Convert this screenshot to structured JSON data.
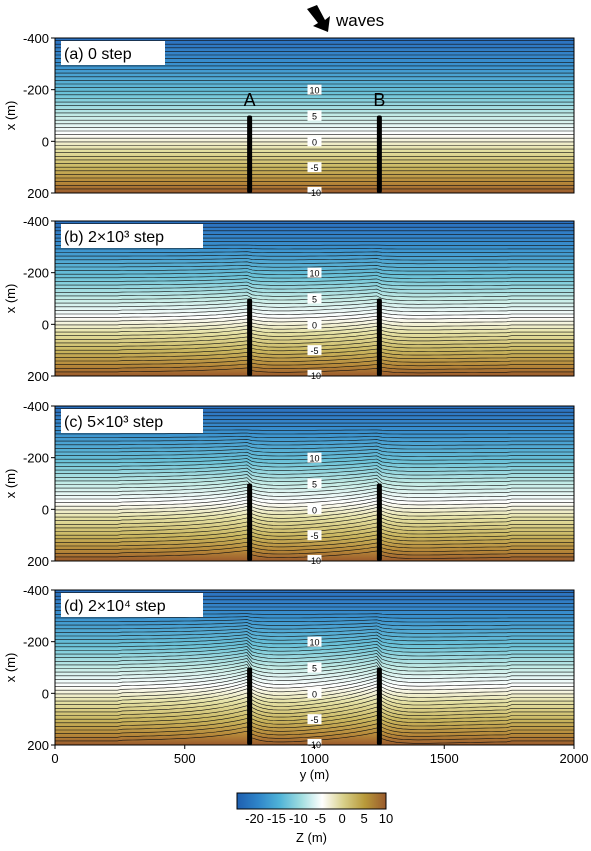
{
  "waves_label": "waves",
  "y_axis_label": "x (m)",
  "x_axis_label": "y (m)",
  "colorbar_label": "Z (m)",
  "groin_labels": [
    "A",
    "B"
  ],
  "panels": [
    {
      "label_text": "(a) 0 step",
      "stage": 0
    },
    {
      "label_text": "(b) 2×10³ step",
      "stage": 1
    },
    {
      "label_text": "(c) 5×10³ step",
      "stage": 2
    },
    {
      "label_text": "(d) 2×10⁴ step",
      "stage": 3
    }
  ],
  "contour_labels": [
    "-20",
    "-15",
    "-10",
    "-5",
    "0",
    "5",
    "10"
  ],
  "contour_label_values": [
    -20,
    -15,
    -10,
    -5,
    0,
    5,
    10
  ],
  "chart_data": {
    "type": "heatmap",
    "x_label": "y (m)",
    "y_label": "x (m)",
    "xlim": [
      0,
      2000
    ],
    "ylim": [
      -400,
      200
    ],
    "x_ticks": [
      0,
      500,
      1000,
      1500,
      2000
    ],
    "x_tick_labels": [
      "0",
      "500",
      "1000",
      "1500",
      "2000"
    ],
    "y_ticks": [
      -400,
      -200,
      0,
      200
    ],
    "y_tick_labels": [
      "-400",
      "-200",
      "0",
      "200"
    ],
    "groins": [
      {
        "name": "A",
        "y": 750,
        "x_from": -100,
        "x_to": 200
      },
      {
        "name": "B",
        "y": 1250,
        "x_from": -100,
        "x_to": 200
      }
    ],
    "colorbar": {
      "label": "Z (m)",
      "min": -24,
      "max": 10,
      "ticks": [
        -20,
        -15,
        -10,
        -5,
        0,
        5,
        10
      ],
      "tick_labels": [
        "-20",
        "-15",
        "-10",
        "-5",
        "0",
        "5",
        "10"
      ],
      "colors": [
        "#1e5fb0",
        "#2f85c9",
        "#4fb3d8",
        "#9fdde0",
        "#ffffff",
        "#d8d08a",
        "#b89a3a",
        "#9a5a2c"
      ]
    }
  }
}
